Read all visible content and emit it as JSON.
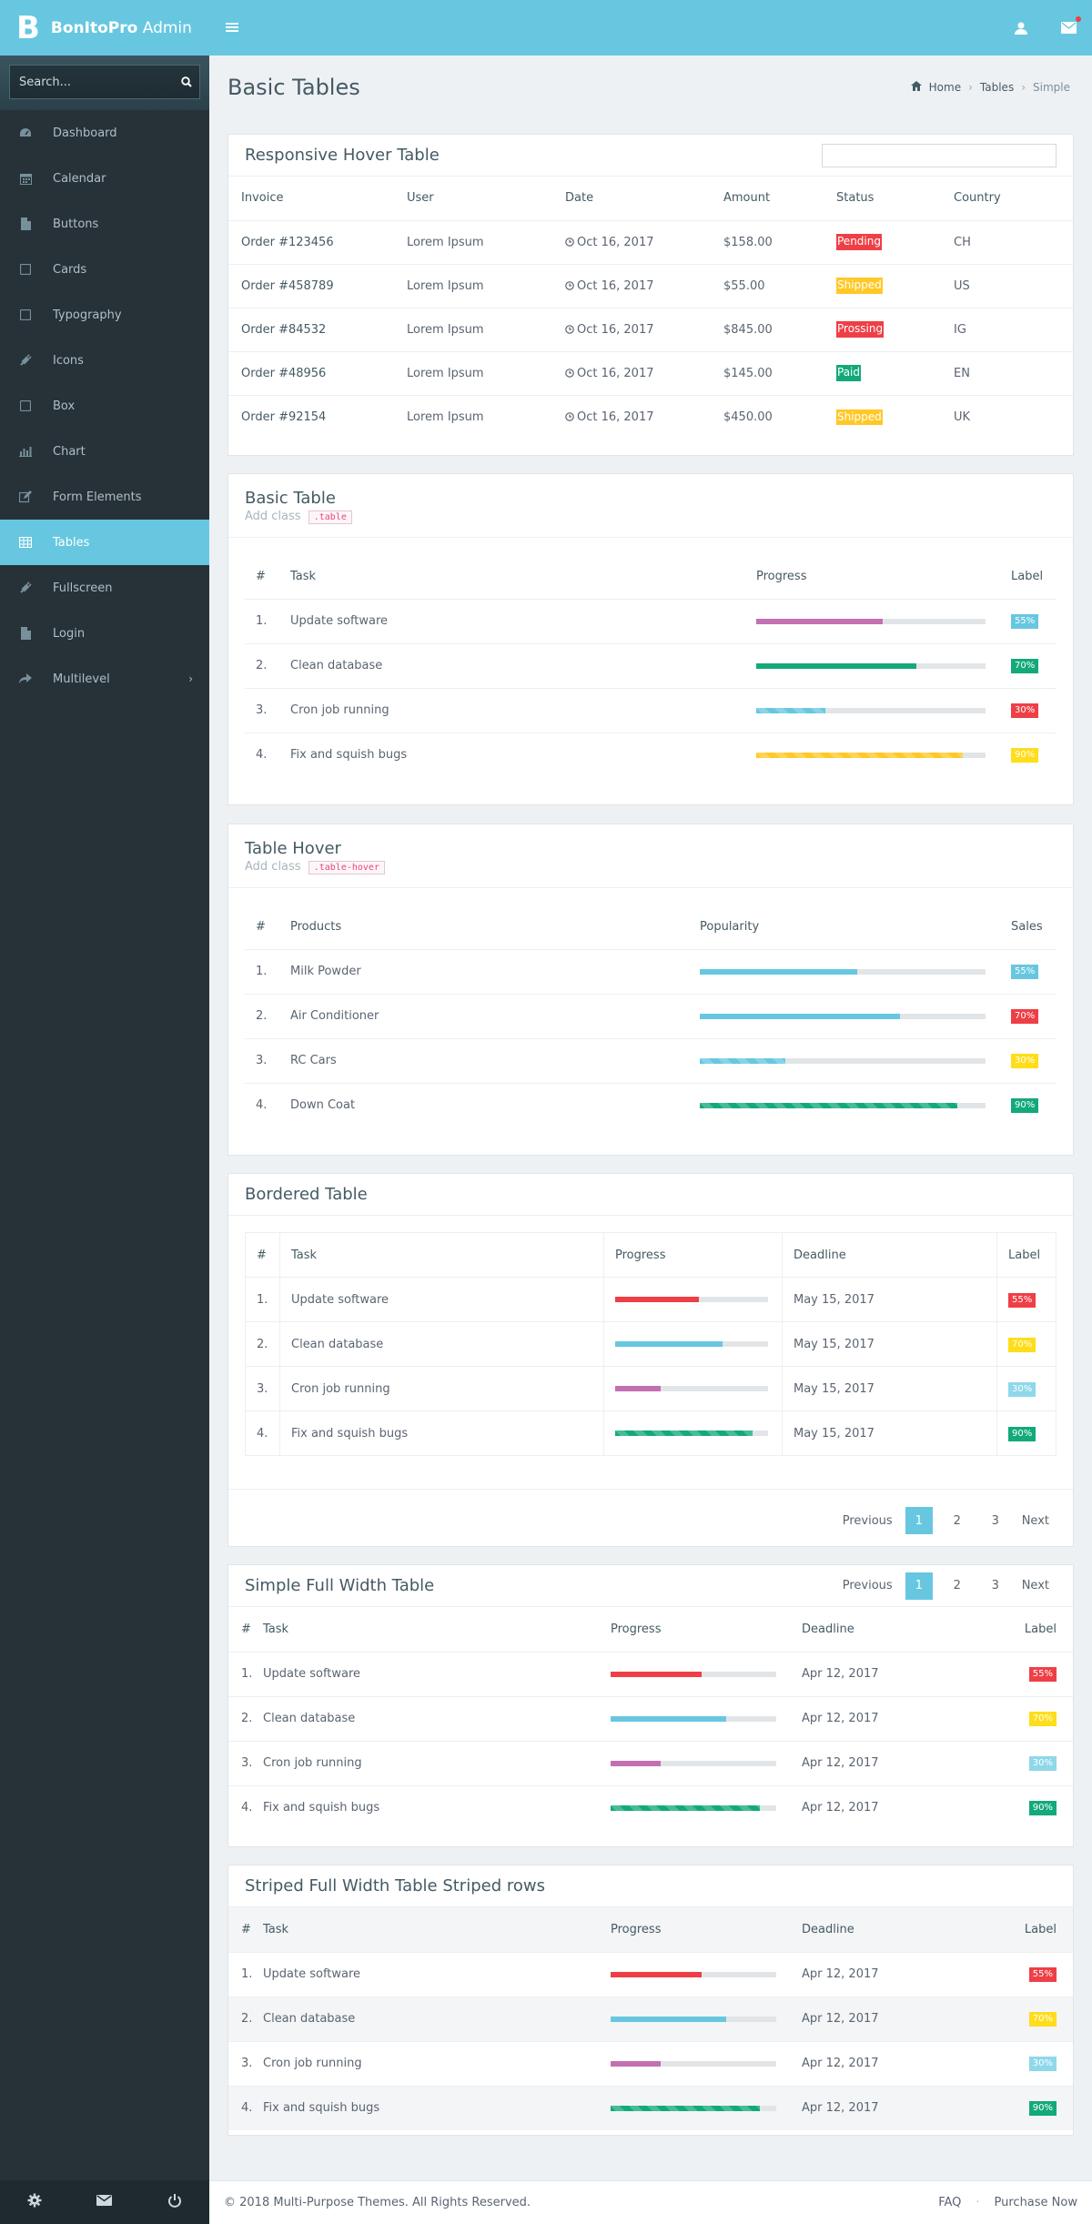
{
  "brand": {
    "mark": "B",
    "name_bold": "BonItoPro",
    "name_rest": " Admin"
  },
  "header": {
    "menu_icon": "hamburger-icon",
    "user_icon": "user-icon",
    "mail_icon": "mail-icon"
  },
  "sidebar": {
    "search_placeholder": "Search...",
    "items": [
      {
        "label": "Dashboard",
        "icon": "dashboard-icon"
      },
      {
        "label": "Calendar",
        "icon": "calendar-icon"
      },
      {
        "label": "Buttons",
        "icon": "file-icon"
      },
      {
        "label": "Cards",
        "icon": "square-icon"
      },
      {
        "label": "Typography",
        "icon": "square-icon"
      },
      {
        "label": "Icons",
        "icon": "plug-icon"
      },
      {
        "label": "Box",
        "icon": "square-icon"
      },
      {
        "label": "Chart",
        "icon": "bar-chart-icon"
      },
      {
        "label": "Form Elements",
        "icon": "edit-icon"
      },
      {
        "label": "Tables",
        "icon": "table-icon"
      },
      {
        "label": "Fullscreen",
        "icon": "plug-icon"
      },
      {
        "label": "Login",
        "icon": "file-icon"
      },
      {
        "label": "Multilevel",
        "icon": "share-icon",
        "chevron": "›"
      }
    ],
    "active_index": 9
  },
  "page": {
    "title": "Basic Tables",
    "breadcrumb": [
      "Home",
      "Tables",
      "Simple"
    ]
  },
  "hover_table": {
    "title": "Responsive Hover Table",
    "columns": [
      "Invoice",
      "User",
      "Date",
      "Amount",
      "Status",
      "Country"
    ],
    "rows": [
      {
        "invoice": "Order #123456",
        "user": "Lorem Ipsum",
        "date": "Oct 16, 2017",
        "amount": "$158.00",
        "status": "Pending",
        "status_color": "#ef3f46",
        "country": "CH"
      },
      {
        "invoice": "Order #458789",
        "user": "Lorem Ipsum",
        "date": "Oct 16, 2017",
        "amount": "$55.00",
        "status": "Shipped",
        "status_color": "#ffc827",
        "country": "US"
      },
      {
        "invoice": "Order #84532",
        "user": "Lorem Ipsum",
        "date": "Oct 16, 2017",
        "amount": "$845.00",
        "status": "Prossing",
        "status_color": "#ef3f46",
        "country": "IG"
      },
      {
        "invoice": "Order #48956",
        "user": "Lorem Ipsum",
        "date": "Oct 16, 2017",
        "amount": "$145.00",
        "status": "Paid",
        "status_color": "#13a97b",
        "country": "EN"
      },
      {
        "invoice": "Order #92154",
        "user": "Lorem Ipsum",
        "date": "Oct 16, 2017",
        "amount": "$450.00",
        "status": "Shipped",
        "status_color": "#ffc827",
        "country": "UK"
      }
    ]
  },
  "basic_table": {
    "title": "Basic Table",
    "sub": "Add class",
    "code": ".table",
    "columns": [
      "#",
      "Task",
      "Progress",
      "Label"
    ],
    "rows": [
      {
        "n": "1.",
        "task": "Update software",
        "progress": 0.55,
        "color": "#c36fb2",
        "label": "55%",
        "label_color": "#67c7e0",
        "striped": false
      },
      {
        "n": "2.",
        "task": "Clean database",
        "progress": 0.7,
        "color": "#13a97b",
        "label": "70%",
        "label_color": "#13a97b",
        "striped": false
      },
      {
        "n": "3.",
        "task": "Cron job running",
        "progress": 0.3,
        "color": "#67c7e0",
        "label": "30%",
        "label_color": "#ef3f46",
        "striped": true
      },
      {
        "n": "4.",
        "task": "Fix and squish bugs",
        "progress": 0.9,
        "color": "#ffc827",
        "label": "90%",
        "label_color": "#ffdd1a",
        "striped": true
      }
    ]
  },
  "hover_table2": {
    "title": "Table Hover",
    "sub": "Add class",
    "code": ".table-hover",
    "columns": [
      "#",
      "Products",
      "Popularity",
      "Sales"
    ],
    "rows": [
      {
        "n": "1.",
        "task": "Milk Powder",
        "progress": 0.55,
        "color": "#67c7e0",
        "label": "55%",
        "label_color": "#67c7e0",
        "striped": false
      },
      {
        "n": "2.",
        "task": "Air Conditioner",
        "progress": 0.7,
        "color": "#67c7e0",
        "label": "70%",
        "label_color": "#ef3f46",
        "striped": false
      },
      {
        "n": "3.",
        "task": "RC Cars",
        "progress": 0.3,
        "color": "#67c7e0",
        "label": "30%",
        "label_color": "#ffdd1a",
        "striped": true
      },
      {
        "n": "4.",
        "task": "Down Coat",
        "progress": 0.9,
        "color": "#13a97b",
        "label": "90%",
        "label_color": "#13a97b",
        "striped": true
      }
    ]
  },
  "bordered_table": {
    "title": "Bordered Table",
    "columns": [
      "#",
      "Task",
      "Progress",
      "Deadline",
      "Label"
    ],
    "rows": [
      {
        "n": "1.",
        "task": "Update software",
        "progress": 0.55,
        "color": "#ef3f46",
        "deadline": "May 15, 2017",
        "label": "55%",
        "label_color": "#ef3f46",
        "striped": false
      },
      {
        "n": "2.",
        "task": "Clean database",
        "progress": 0.7,
        "color": "#67c7e0",
        "deadline": "May 15, 2017",
        "label": "70%",
        "label_color": "#ffdd1a",
        "striped": false
      },
      {
        "n": "3.",
        "task": "Cron job running",
        "progress": 0.3,
        "color": "#c36fb2",
        "deadline": "May 15, 2017",
        "label": "30%",
        "label_color": "#8ed8ea",
        "striped": false
      },
      {
        "n": "4.",
        "task": "Fix and squish bugs",
        "progress": 0.9,
        "color": "#13a97b",
        "deadline": "May 15, 2017",
        "label": "90%",
        "label_color": "#13a97b",
        "striped": true
      }
    ],
    "pager": {
      "prev": "Previous",
      "pages": [
        "1",
        "2",
        "3"
      ],
      "next": "Next",
      "active": 0
    }
  },
  "simple_table": {
    "title": "Simple Full Width Table",
    "columns": [
      "#",
      "Task",
      "Progress",
      "Deadline",
      "Label"
    ],
    "rows": [
      {
        "n": "1.",
        "task": "Update software",
        "progress": 0.55,
        "color": "#ef3f46",
        "deadline": "Apr 12, 2017",
        "label": "55%",
        "label_color": "#ef3f46",
        "striped": false
      },
      {
        "n": "2.",
        "task": "Clean database",
        "progress": 0.7,
        "color": "#67c7e0",
        "deadline": "Apr 12, 2017",
        "label": "70%",
        "label_color": "#ffdd1a",
        "striped": false
      },
      {
        "n": "3.",
        "task": "Cron job running",
        "progress": 0.3,
        "color": "#c36fb2",
        "deadline": "Apr 12, 2017",
        "label": "30%",
        "label_color": "#8ed8ea",
        "striped": false
      },
      {
        "n": "4.",
        "task": "Fix and squish bugs",
        "progress": 0.9,
        "color": "#13a97b",
        "deadline": "Apr 12, 2017",
        "label": "90%",
        "label_color": "#13a97b",
        "striped": true
      }
    ],
    "pager": {
      "prev": "Previous",
      "pages": [
        "1",
        "2",
        "3"
      ],
      "next": "Next",
      "active": 0
    }
  },
  "striped_table": {
    "title": "Striped Full Width Table Striped rows",
    "columns": [
      "#",
      "Task",
      "Progress",
      "Deadline",
      "Label"
    ],
    "rows": [
      {
        "n": "1.",
        "task": "Update software",
        "progress": 0.55,
        "color": "#ef3f46",
        "deadline": "Apr 12, 2017",
        "label": "55%",
        "label_color": "#ef3f46",
        "striped": false
      },
      {
        "n": "2.",
        "task": "Clean database",
        "progress": 0.7,
        "color": "#67c7e0",
        "deadline": "Apr 12, 2017",
        "label": "70%",
        "label_color": "#ffdd1a",
        "striped": false
      },
      {
        "n": "3.",
        "task": "Cron job running",
        "progress": 0.3,
        "color": "#c36fb2",
        "deadline": "Apr 12, 2017",
        "label": "30%",
        "label_color": "#8ed8ea",
        "striped": false
      },
      {
        "n": "4.",
        "task": "Fix and squish bugs",
        "progress": 0.9,
        "color": "#13a97b",
        "deadline": "Apr 12, 2017",
        "label": "90%",
        "label_color": "#13a97b",
        "striped": true
      }
    ]
  },
  "footer": {
    "copyright": "© 2018 Multi-Purpose Themes. All Rights Reserved.",
    "faq": "FAQ",
    "purchase": "Purchase Now"
  },
  "sidebar_footer": {
    "icons": [
      "gear-icon",
      "envelope-icon",
      "power-icon"
    ]
  }
}
